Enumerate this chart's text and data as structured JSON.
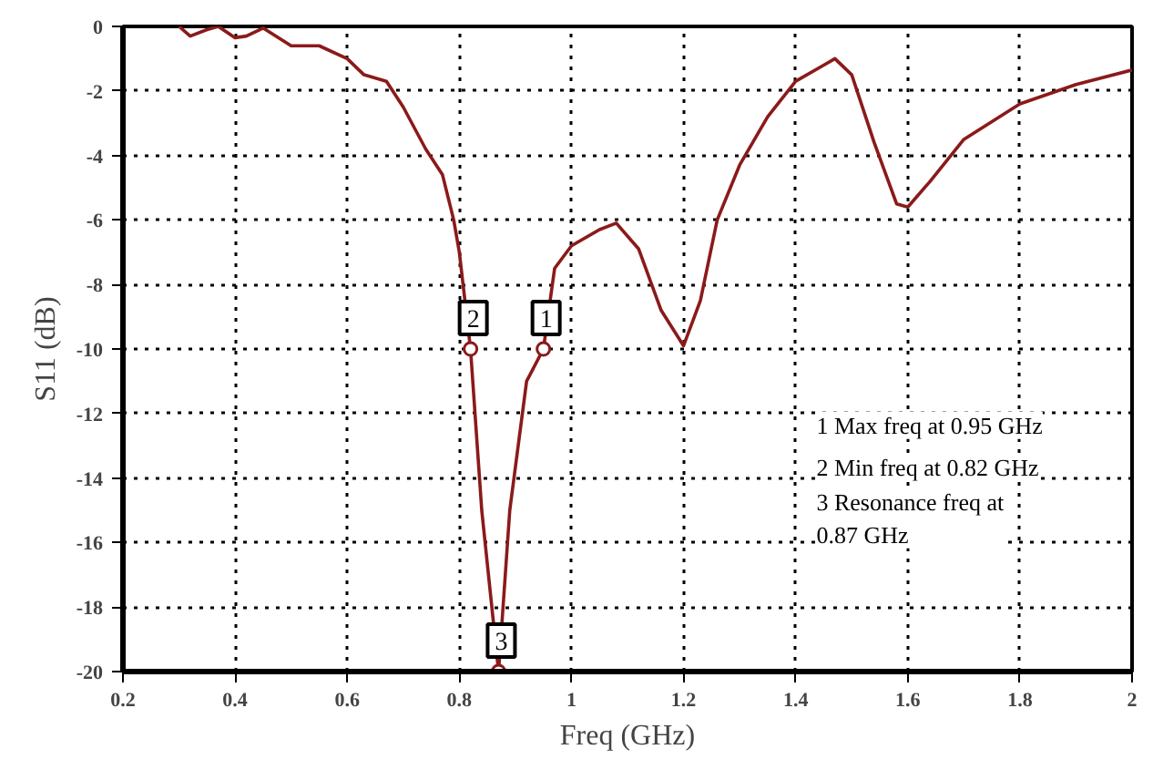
{
  "chart_data": {
    "type": "line",
    "xlabel": "Freq (GHz)",
    "ylabel": "S11 (dB)",
    "x": [
      0.3,
      0.32,
      0.35,
      0.37,
      0.4,
      0.42,
      0.45,
      0.5,
      0.55,
      0.6,
      0.63,
      0.67,
      0.7,
      0.74,
      0.77,
      0.79,
      0.8,
      0.82,
      0.84,
      0.87,
      0.89,
      0.92,
      0.95,
      0.97,
      1.0,
      1.05,
      1.08,
      1.12,
      1.16,
      1.2,
      1.23,
      1.26,
      1.3,
      1.35,
      1.4,
      1.45,
      1.47,
      1.5,
      1.54,
      1.58,
      1.6,
      1.64,
      1.7,
      1.8,
      1.9,
      2.0
    ],
    "series": [
      {
        "color": "#8b1a1a",
        "values": [
          0,
          -0.3,
          -0.1,
          0,
          -0.35,
          -0.3,
          -0.05,
          -0.6,
          -0.6,
          -1.0,
          -1.5,
          -1.7,
          -2.5,
          -3.8,
          -4.6,
          -6.0,
          -7.0,
          -10,
          -15,
          -20,
          -15,
          -11,
          -10,
          -7.5,
          -6.8,
          -6.3,
          -6.1,
          -6.9,
          -8.8,
          -9.9,
          -8.5,
          -6.0,
          -4.3,
          -2.8,
          -1.7,
          -1.2,
          -1.0,
          -1.5,
          -3.6,
          -5.5,
          -5.6,
          -4.8,
          -3.5,
          -2.4,
          -1.8,
          -1.35
        ]
      }
    ],
    "xlim": [
      0.2,
      2
    ],
    "ylim": [
      -20,
      0
    ],
    "xticks": [
      0.2,
      0.4,
      0.6,
      0.8,
      1,
      1.2,
      1.4,
      1.6,
      1.8,
      2
    ],
    "yticks": [
      -20,
      -18,
      -16,
      -14,
      -12,
      -10,
      -8,
      -6,
      -4,
      -2,
      0
    ],
    "grid": true,
    "marker": "none",
    "line_style": "solid",
    "annotations": [
      {
        "text": "1",
        "x": 0.95,
        "y": -10
      },
      {
        "text": "2",
        "x": 0.82,
        "y": -10
      },
      {
        "text": "3",
        "x": 0.87,
        "y": -20
      },
      "1 Max freq at 0.95 GHz",
      "2 Min freq at 0.82 GHz",
      "3 Resonance freq at\n0.87 GHz"
    ]
  }
}
